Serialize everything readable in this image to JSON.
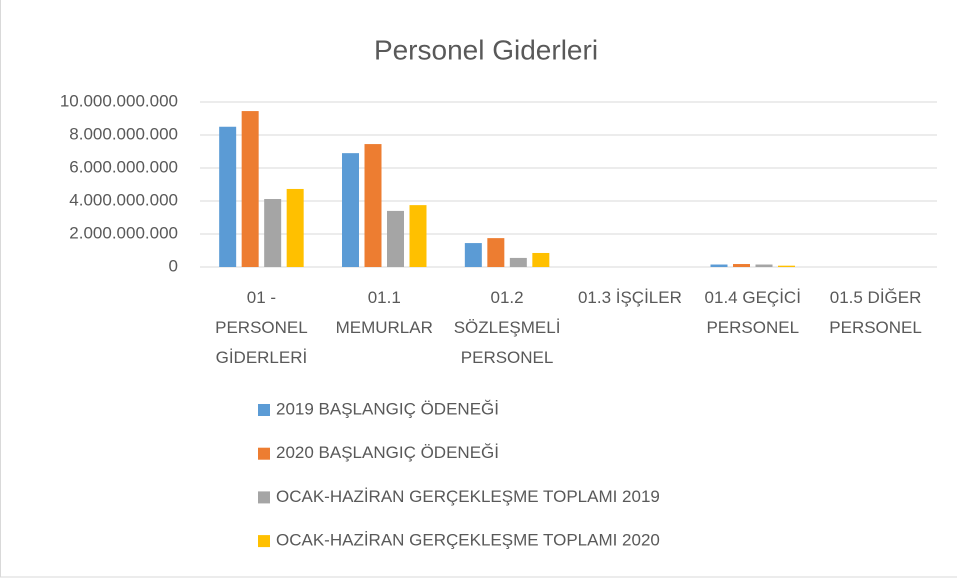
{
  "chart_data": {
    "type": "bar",
    "title": "Personel Giderleri",
    "categories": [
      "01 - PERSONEL GİDERLERİ",
      "01.1 MEMURLAR",
      "01.2 SÖZLEŞMELİ PERSONEL",
      "01.3 İŞÇİLER",
      "01.4 GEÇİCİ PERSONEL",
      "01.5 DİĞER PERSONEL"
    ],
    "series": [
      {
        "name": "2019 BAŞLANGIÇ ÖDENEĞİ",
        "color": "#5b9bd5",
        "values": [
          8500000000,
          6900000000,
          1450000000,
          0,
          150000000,
          0
        ]
      },
      {
        "name": "2020 BAŞLANGIÇ ÖDENEĞİ",
        "color": "#ed7d31",
        "values": [
          9450000000,
          7450000000,
          1750000000,
          0,
          180000000,
          0
        ]
      },
      {
        "name": "OCAK-HAZİRAN GERÇEKLEŞME TOPLAMI 2019",
        "color": "#a5a5a5",
        "values": [
          4120000000,
          3400000000,
          550000000,
          0,
          150000000,
          0
        ]
      },
      {
        "name": "OCAK-HAZİRAN GERÇEKLEŞME TOPLAMI 2020",
        "color": "#ffc000",
        "values": [
          4730000000,
          3750000000,
          850000000,
          0,
          80000000,
          0
        ]
      }
    ],
    "ylim": [
      0,
      10000000000
    ],
    "yticks": [
      0,
      {
        "value": 2000000000,
        "label": "2.000.000.000"
      },
      {
        "value": 4000000000,
        "label": "4.000.000.000"
      },
      {
        "value": 6000000000,
        "label": "6.000.000.000"
      },
      {
        "value": 8000000000,
        "label": "8.000.000.000"
      },
      {
        "value": 10000000000,
        "label": "10.000.000.000"
      }
    ],
    "grid": true,
    "legend": "bottom"
  }
}
